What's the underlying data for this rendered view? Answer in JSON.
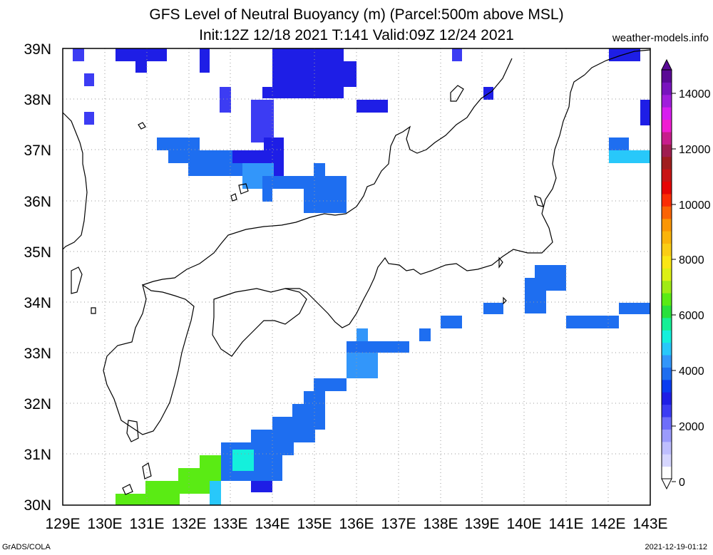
{
  "title_line1": "GFS Level of Neutral Buoyancy (m) (Parcel:500m above MSL)",
  "title_line2": "Init:12Z 12/18 2021 T:141 Valid:09Z 12/24 2021",
  "site": "weather-models.info",
  "footer_left": "GrADS/COLA",
  "footer_right": "2021-12-19-01:12",
  "lat_labels": [
    "39N",
    "38N",
    "37N",
    "36N",
    "35N",
    "34N",
    "33N",
    "32N",
    "31N",
    "30N"
  ],
  "lon_labels": [
    "129E",
    "130E",
    "131E",
    "132E",
    "133E",
    "134E",
    "135E",
    "136E",
    "137E",
    "138E",
    "139E",
    "140E",
    "141E",
    "142E",
    "143E"
  ],
  "colorbar": {
    "labels": [
      "14000",
      "12000",
      "10000",
      "8000",
      "6000",
      "4000",
      "2000",
      "0"
    ],
    "colors": [
      "#fdfdfd",
      "#d6d6fe",
      "#bebefe",
      "#9b9bfc",
      "#6e6efa",
      "#3c3cf3",
      "#1e1ee6",
      "#0a3cf0",
      "#1e6ef0",
      "#3296fa",
      "#28c8fa",
      "#14f0dc",
      "#14f096",
      "#28e13c",
      "#5aeb14",
      "#a0eb14",
      "#dcf014",
      "#fae614",
      "#facd14",
      "#fab40a",
      "#fa9605",
      "#fa6405",
      "#fa2d05",
      "#e60505",
      "#c81414",
      "#a01e1e",
      "#a01e50",
      "#c81e8c",
      "#f01ed2",
      "#d71ef0",
      "#a01edc",
      "#7814be",
      "#5a0a96"
    ]
  },
  "legend_unit": "m"
}
